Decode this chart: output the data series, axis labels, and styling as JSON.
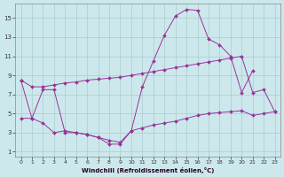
{
  "xlabel": "Windchill (Refroidissement éolien,°C)",
  "bg_color": "#cce8ec",
  "line_color": "#993399",
  "grid_color": "#aacccc",
  "xlim": [
    -0.5,
    23.5
  ],
  "ylim": [
    0.5,
    16.5
  ],
  "yticks": [
    1,
    3,
    5,
    7,
    9,
    11,
    13,
    15
  ],
  "xticks": [
    0,
    1,
    2,
    3,
    4,
    5,
    6,
    7,
    8,
    9,
    10,
    11,
    12,
    13,
    14,
    15,
    16,
    17,
    18,
    19,
    20,
    21,
    22,
    23
  ],
  "line1_x": [
    0,
    1,
    2,
    3,
    4,
    5,
    6,
    7,
    8,
    9,
    10,
    11,
    12,
    13,
    14,
    15,
    16,
    17,
    18,
    19,
    20,
    21
  ],
  "line1_y": [
    8.5,
    4.5,
    7.5,
    7.5,
    3.0,
    3.0,
    2.8,
    2.5,
    1.8,
    1.8,
    3.2,
    7.8,
    10.5,
    13.2,
    15.2,
    15.9,
    15.8,
    12.8,
    12.2,
    11.0,
    7.2,
    9.5
  ],
  "line2_x": [
    0,
    1,
    2,
    3,
    4,
    5,
    6,
    7,
    8,
    9,
    10,
    11,
    12,
    13,
    14,
    15,
    16,
    17,
    18,
    19,
    20,
    21,
    22,
    23
  ],
  "line2_y": [
    8.5,
    7.8,
    7.8,
    8.0,
    8.2,
    8.3,
    8.5,
    8.6,
    8.7,
    8.8,
    9.0,
    9.2,
    9.4,
    9.6,
    9.8,
    10.0,
    10.2,
    10.4,
    10.6,
    10.8,
    11.0,
    7.2,
    7.5,
    5.2
  ],
  "line3_x": [
    0,
    1,
    2,
    3,
    4,
    5,
    6,
    7,
    8,
    9,
    10,
    11,
    12,
    13,
    14,
    15,
    16,
    17,
    18,
    19,
    20,
    21,
    22,
    23
  ],
  "line3_y": [
    4.5,
    4.5,
    4.0,
    3.0,
    3.2,
    3.0,
    2.8,
    2.5,
    2.2,
    2.0,
    3.2,
    3.5,
    3.8,
    4.0,
    4.2,
    4.5,
    4.8,
    5.0,
    5.1,
    5.2,
    5.3,
    4.8,
    5.0,
    5.2
  ]
}
